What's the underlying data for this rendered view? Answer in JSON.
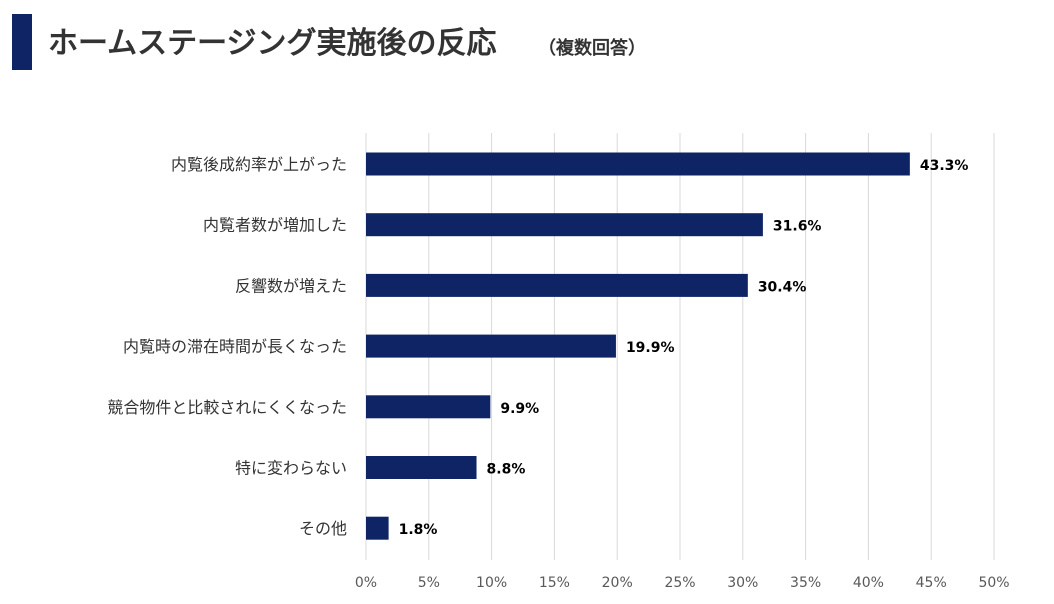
{
  "header": {
    "title": "ホームステージング実施後の反応",
    "subtitle": "（複数回答）"
  },
  "colors": {
    "accent": "#0f2464",
    "bar": "#0f2464",
    "grid": "#d9d9d9"
  },
  "chart_data": {
    "type": "bar",
    "orientation": "horizontal",
    "title": "ホームステージング実施後の反応",
    "subtitle": "（複数回答）",
    "categories": [
      "内覧後成約率が上がった",
      "内覧者数が増加した",
      "反響数が増えた",
      "内覧時の滞在時間が長くなった",
      "競合物件と比較されにくくなった",
      "特に変わらない",
      "その他"
    ],
    "values": [
      43.3,
      31.6,
      30.4,
      19.9,
      9.9,
      8.8,
      1.8
    ],
    "value_labels": [
      "43.3%",
      "31.6%",
      "30.4%",
      "19.9%",
      "9.9%",
      "8.8%",
      "1.8%"
    ],
    "xlim": [
      0,
      50
    ],
    "xticks": [
      "0%",
      "5%",
      "10%",
      "15%",
      "20%",
      "25%",
      "30%",
      "35%",
      "40%",
      "45%",
      "50%"
    ],
    "grid": true,
    "legend": "none"
  }
}
